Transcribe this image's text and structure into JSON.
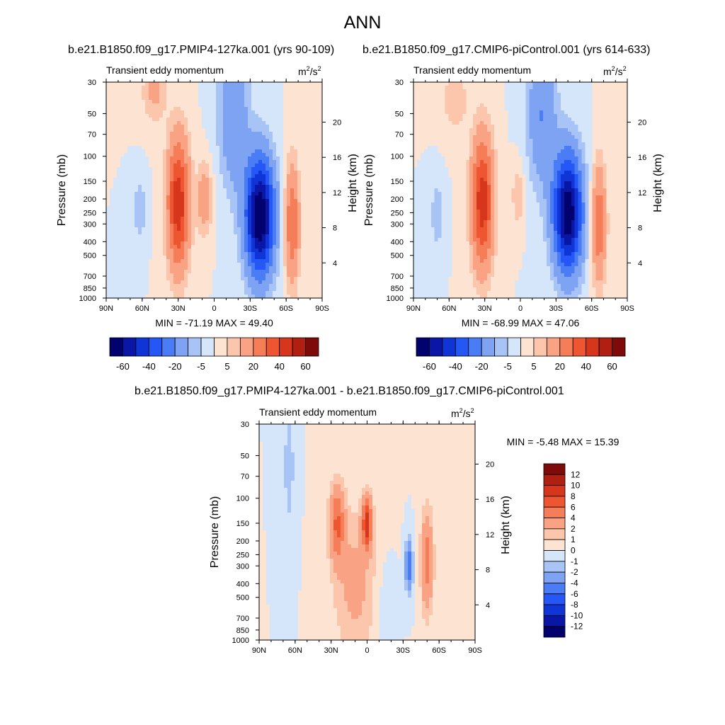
{
  "figure": {
    "title": "ANN",
    "colors": {
      "neg": [
        "#02026f",
        "#0a16a6",
        "#1035d7",
        "#2457f5",
        "#4a7cf5",
        "#7ea3f3",
        "#a8c4f6",
        "#d5e6fb"
      ],
      "pos": [
        "#fde3d1",
        "#fbc6ab",
        "#f9a384",
        "#f57d58",
        "#ee5632",
        "#d6361c",
        "#b11f13",
        "#7f0a0a"
      ]
    }
  },
  "chart_data": [
    {
      "type": "heatmap",
      "title": "b.e21.B1850.f09_g17.PMIP4-127ka.001 (yrs 90-109)",
      "subtitle": "Transient eddy momentum",
      "units_base": "m",
      "units_sup_a": "2",
      "units_mid": "/s",
      "units_sup_b": "2",
      "ylabel": "Pressure (mb)",
      "ylabel_right": "Height (km)",
      "x_ticks": [
        "90N",
        "60N",
        "30N",
        "0",
        "30S",
        "60S",
        "90S"
      ],
      "y_ticks": [
        "30",
        "50",
        "70",
        "100",
        "150",
        "200",
        "250",
        "300",
        "400",
        "500",
        "700",
        "850",
        "1000"
      ],
      "y_ticks_right": [
        "20",
        "16",
        "12",
        "8",
        "4"
      ],
      "min_max": "MIN = -71.19   MAX =  49.40",
      "levels": [
        -70,
        -60,
        -50,
        -40,
        -30,
        -20,
        -10,
        -5,
        0,
        5,
        10,
        20,
        30,
        40,
        50,
        60,
        70
      ],
      "colorbar_labels": [
        "-60",
        "-40",
        "-20",
        "-5",
        "5",
        "20",
        "40",
        "60"
      ],
      "features": [
        {
          "lat": -38,
          "p": 265,
          "amp": -71.19,
          "slat": 12,
          "sz": 0.95
        },
        {
          "lat": 30,
          "p": 215,
          "amp": 48,
          "slat": 9,
          "sz": 1.05
        },
        {
          "lat": 8,
          "p": 200,
          "amp": 18,
          "slat": 6,
          "sz": 0.55
        },
        {
          "lat": -65,
          "p": 300,
          "amp": 30,
          "slat": 6,
          "sz": 0.95
        },
        {
          "lat": 50,
          "p": 35,
          "amp": 12,
          "slat": 10,
          "sz": 0.5
        },
        {
          "lat": -16,
          "p": 50,
          "amp": -20,
          "slat": 12,
          "sz": 1.2
        },
        {
          "lat": 62,
          "p": 240,
          "amp": -10,
          "slat": 5,
          "sz": 0.5
        }
      ]
    },
    {
      "type": "heatmap",
      "title": "b.e21.B1850.f09_g17.CMIP6-piControl.001 (yrs 614-633)",
      "subtitle": "Transient eddy momentum",
      "units_base": "m",
      "units_sup_a": "2",
      "units_mid": "/s",
      "units_sup_b": "2",
      "ylabel": "Pressure (mb)",
      "ylabel_right": "Height (km)",
      "x_ticks": [
        "90N",
        "60N",
        "30N",
        "0",
        "30S",
        "60S",
        "90S"
      ],
      "y_ticks": [
        "30",
        "50",
        "70",
        "100",
        "150",
        "200",
        "250",
        "300",
        "400",
        "500",
        "700",
        "850",
        "1000"
      ],
      "y_ticks_right": [
        "20",
        "16",
        "12",
        "8",
        "4"
      ],
      "min_max": "MIN = -68.99   MAX =  47.06",
      "levels": [
        -70,
        -60,
        -50,
        -40,
        -30,
        -20,
        -10,
        -5,
        0,
        5,
        10,
        20,
        30,
        40,
        50,
        60,
        70
      ],
      "colorbar_labels": [
        "-60",
        "-40",
        "-20",
        "-5",
        "5",
        "20",
        "40",
        "60"
      ],
      "features": [
        {
          "lat": -40,
          "p": 250,
          "amp": -68.99,
          "slat": 12,
          "sz": 0.95
        },
        {
          "lat": 32,
          "p": 210,
          "amp": 47.06,
          "slat": 9,
          "sz": 1.05
        },
        {
          "lat": 2,
          "p": 190,
          "amp": 10,
          "slat": 5,
          "sz": 0.5
        },
        {
          "lat": -66,
          "p": 300,
          "amp": 28,
          "slat": 6,
          "sz": 0.95
        },
        {
          "lat": 55,
          "p": 40,
          "amp": 10,
          "slat": 10,
          "sz": 0.5
        },
        {
          "lat": -18,
          "p": 50,
          "amp": -20,
          "slat": 12,
          "sz": 1.2
        },
        {
          "lat": 70,
          "p": 260,
          "amp": -10,
          "slat": 5,
          "sz": 0.5
        }
      ]
    },
    {
      "type": "heatmap",
      "title": "b.e21.B1850.f09_g17.PMIP4-127ka.001 - b.e21.B1850.f09_g17.CMIP6-piControl.001",
      "subtitle": "Transient eddy momentum",
      "units_base": "m",
      "units_sup_a": "2",
      "units_mid": "/s",
      "units_sup_b": "2",
      "ylabel": "Pressure (mb)",
      "ylabel_right": "Height (km)",
      "x_ticks": [
        "90N",
        "60N",
        "30N",
        "0",
        "30S",
        "60S",
        "90S"
      ],
      "y_ticks": [
        "30",
        "50",
        "70",
        "100",
        "150",
        "200",
        "250",
        "300",
        "400",
        "500",
        "700",
        "850",
        "1000"
      ],
      "y_ticks_right": [
        "20",
        "16",
        "12",
        "8",
        "4"
      ],
      "min_max": "MIN =  -5.48   MAX =  15.39",
      "levels": [
        -14,
        -12,
        -10,
        -8,
        -6,
        -4,
        -2,
        -1,
        0,
        1,
        2,
        4,
        6,
        8,
        10,
        12,
        14
      ],
      "colorbar_labels": [
        "12",
        "10",
        "8",
        "6",
        "4",
        "2",
        "1",
        "0",
        "-1",
        "-2",
        "-4",
        "-6",
        "-8",
        "-10",
        "-12"
      ],
      "features": [
        {
          "lat": 0,
          "p": 150,
          "amp": 9,
          "slat": 4,
          "sz": 0.4
        },
        {
          "lat": 25,
          "p": 150,
          "amp": 6,
          "slat": 6,
          "sz": 0.6
        },
        {
          "lat": -50,
          "p": 280,
          "amp": 5,
          "slat": 5,
          "sz": 0.8
        },
        {
          "lat": -35,
          "p": 300,
          "amp": -5.48,
          "slat": 3,
          "sz": 0.4
        },
        {
          "lat": 65,
          "p": 60,
          "amp": -1.5,
          "slat": 5,
          "sz": 1.2
        },
        {
          "lat": 10,
          "p": 400,
          "amp": 2.5,
          "slat": 18,
          "sz": 1.2
        },
        {
          "lat": -15,
          "p": 600,
          "amp": -0.8,
          "slat": 8,
          "sz": 0.8
        }
      ]
    }
  ]
}
